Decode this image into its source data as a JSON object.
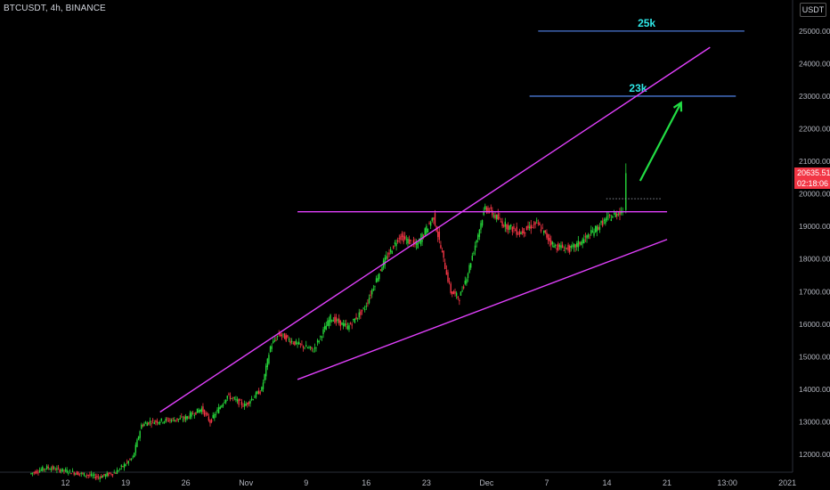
{
  "header": {
    "symbol_line": "BTCUSDT, 4h, BINANCE"
  },
  "currency_badge": "USDT",
  "last_price_label": "20635.51",
  "countdown_label": "02:18:06",
  "colors": {
    "background": "#000000",
    "up": "#26d63a",
    "down": "#f23645",
    "trendline": "#e040fb",
    "level_line": "#4a78d6",
    "level_text": "#2ee6e6",
    "arrow": "#22dd44"
  },
  "chart_data": {
    "type": "candlestick",
    "title": "BTCUSDT, 4h, BINANCE",
    "xlabel": "",
    "ylabel": "",
    "x_ticks": [
      "12",
      "19",
      "26",
      "Nov",
      "9",
      "16",
      "23",
      "Dec",
      "7",
      "14",
      "21",
      "13:00",
      "2021"
    ],
    "y_ticks": [
      12000,
      13000,
      14000,
      15000,
      16000,
      17000,
      18000,
      19000,
      20000,
      21000,
      22000,
      23000,
      24000,
      25000
    ],
    "y_tick_labels": [
      "12000.00",
      "13000.00",
      "14000.00",
      "15000.00",
      "16000.00",
      "17000.00",
      "18000.00",
      "19000.00",
      "20000.00",
      "21000.00",
      "22000.00",
      "23000.00",
      "24000.00",
      "25000.00"
    ],
    "ylim": [
      11300,
      25800
    ],
    "series_anchors": [
      {
        "date": "2020-10-08",
        "close": 11400
      },
      {
        "date": "2020-10-10",
        "close": 11600
      },
      {
        "date": "2020-10-12",
        "close": 11500
      },
      {
        "date": "2020-10-14",
        "close": 11400
      },
      {
        "date": "2020-10-16",
        "close": 11300
      },
      {
        "date": "2020-10-18",
        "close": 11450
      },
      {
        "date": "2020-10-20",
        "close": 11900
      },
      {
        "date": "2020-10-21",
        "close": 12900
      },
      {
        "date": "2020-10-22",
        "close": 13000
      },
      {
        "date": "2020-10-24",
        "close": 13050
      },
      {
        "date": "2020-10-26",
        "close": 13100
      },
      {
        "date": "2020-10-28",
        "close": 13400
      },
      {
        "date": "2020-10-29",
        "close": 13000
      },
      {
        "date": "2020-10-31",
        "close": 13800
      },
      {
        "date": "2020-11-02",
        "close": 13500
      },
      {
        "date": "2020-11-04",
        "close": 14000
      },
      {
        "date": "2020-11-05",
        "close": 15300
      },
      {
        "date": "2020-11-06",
        "close": 15700
      },
      {
        "date": "2020-11-08",
        "close": 15400
      },
      {
        "date": "2020-11-10",
        "close": 15200
      },
      {
        "date": "2020-11-12",
        "close": 16200
      },
      {
        "date": "2020-11-14",
        "close": 15900
      },
      {
        "date": "2020-11-16",
        "close": 16500
      },
      {
        "date": "2020-11-18",
        "close": 17800
      },
      {
        "date": "2020-11-20",
        "close": 18700
      },
      {
        "date": "2020-11-22",
        "close": 18400
      },
      {
        "date": "2020-11-24",
        "close": 19300
      },
      {
        "date": "2020-11-26",
        "close": 17000
      },
      {
        "date": "2020-11-27",
        "close": 16800
      },
      {
        "date": "2020-11-28",
        "close": 17600
      },
      {
        "date": "2020-11-30",
        "close": 19600
      },
      {
        "date": "2020-12-02",
        "close": 19100
      },
      {
        "date": "2020-12-04",
        "close": 18800
      },
      {
        "date": "2020-12-06",
        "close": 19100
      },
      {
        "date": "2020-12-08",
        "close": 18400
      },
      {
        "date": "2020-12-10",
        "close": 18300
      },
      {
        "date": "2020-12-12",
        "close": 18700
      },
      {
        "date": "2020-12-14",
        "close": 19200
      },
      {
        "date": "2020-12-16",
        "close": 19500
      },
      {
        "date": "2020-12-16",
        "close": 20635.51
      }
    ],
    "last_price": 20635.51,
    "annotations": [
      {
        "kind": "hline",
        "label": "25k",
        "y": 25000,
        "x_start": "2020-12-06",
        "x_end": "2020-12-30"
      },
      {
        "kind": "hline",
        "label": "23k",
        "y": 23000,
        "x_start": "2020-12-05",
        "x_end": "2020-12-29"
      },
      {
        "kind": "trendline",
        "label": "",
        "points": [
          [
            "2020-10-23",
            13300
          ],
          [
            "2020-12-26",
            24500
          ]
        ]
      },
      {
        "kind": "trendline",
        "label": "",
        "points": [
          [
            "2020-11-08",
            14300
          ],
          [
            "2020-12-21",
            18600
          ]
        ]
      },
      {
        "kind": "trendline",
        "label": "",
        "points": [
          [
            "2020-11-08",
            19450
          ],
          [
            "2020-12-21",
            19450
          ]
        ]
      }
    ]
  }
}
